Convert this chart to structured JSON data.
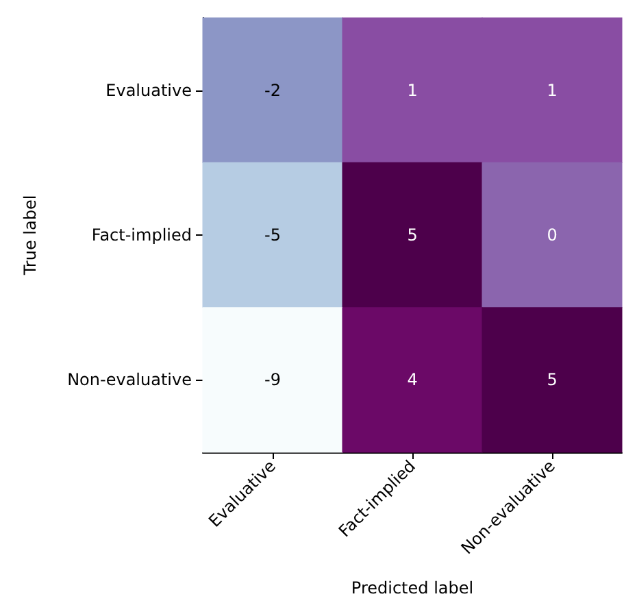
{
  "chart_data": {
    "type": "heatmap",
    "xlabel": "Predicted label",
    "ylabel": "True label",
    "categories": [
      "Evaluative",
      "Fact-implied",
      "Non-evaluative"
    ],
    "y_categories": [
      "Evaluative",
      "Fact-implied",
      "Non-evaluative"
    ],
    "cells": [
      [
        -2,
        1,
        1
      ],
      [
        -5,
        5,
        0
      ],
      [
        -9,
        4,
        5
      ]
    ],
    "data_labels": true
  }
}
